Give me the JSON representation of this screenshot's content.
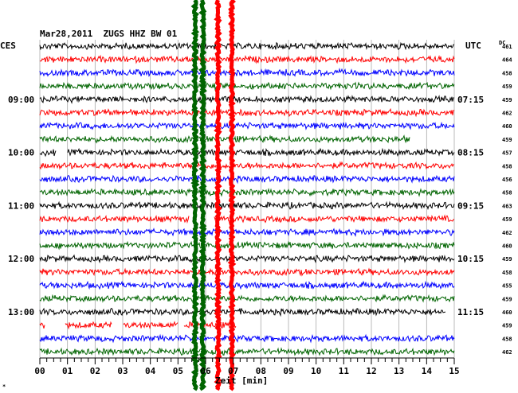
{
  "header": {
    "title": "Mar28,2011  ZUGS HHZ BW 01",
    "left_tz": "CES",
    "right_tz": "UTC",
    "dc_label": "DC"
  },
  "chart_data": {
    "type": "line",
    "title": "Mar28,2011  ZUGS HHZ BW 01",
    "xlabel": "Zeit [min]",
    "xlim": [
      0,
      15
    ],
    "x_ticks": [
      "00",
      "01",
      "02",
      "03",
      "04",
      "05",
      "06",
      "07",
      "08",
      "09",
      "10",
      "11",
      "12",
      "13",
      "14",
      "15"
    ],
    "grid": true,
    "row_colors": [
      "#000000",
      "#ff0000",
      "#0000ff",
      "#006400"
    ],
    "left_hour_labels": [
      {
        "row": 4,
        "label": "09:00"
      },
      {
        "row": 8,
        "label": "10:00"
      },
      {
        "row": 12,
        "label": "11:00"
      },
      {
        "row": 16,
        "label": "12:00"
      },
      {
        "row": 20,
        "label": "13:00"
      }
    ],
    "right_hour_labels": [
      {
        "row": 4,
        "label": "07:15"
      },
      {
        "row": 8,
        "label": "08:15"
      },
      {
        "row": 12,
        "label": "09:15"
      },
      {
        "row": 16,
        "label": "10:15"
      },
      {
        "row": 20,
        "label": "11:15"
      }
    ],
    "dc_values": [
      461,
      464,
      458,
      459,
      459,
      462,
      460,
      459,
      457,
      458,
      456,
      458,
      463,
      459,
      462,
      460,
      459,
      458,
      455,
      459,
      460,
      459,
      458,
      462
    ],
    "gaps": [
      {
        "row": 7,
        "from_min": 13.4,
        "to_min": 15
      },
      {
        "row": 8,
        "from_min": 0.6,
        "to_min": 1.0
      },
      {
        "row": 13,
        "from_min": 5.4,
        "to_min": 6.3
      },
      {
        "row": 20,
        "from_min": 14.7,
        "to_min": 15
      },
      {
        "row": 21,
        "from_min": 0.2,
        "to_min": 0.9
      },
      {
        "row": 21,
        "from_min": 2.6,
        "to_min": 3.0
      },
      {
        "row": 21,
        "from_min": 5.0,
        "to_min": 5.2
      },
      {
        "row": 21,
        "from_min": 7.1,
        "to_min": 15
      }
    ],
    "events": [
      {
        "color": "#006400",
        "minute": 5.62,
        "from_row": 0,
        "to_row": 23,
        "amplitude": "saturated"
      },
      {
        "color": "#006400",
        "minute": 5.9,
        "from_row": 0,
        "to_row": 23,
        "amplitude": "saturated"
      },
      {
        "color": "#ff0000",
        "minute": 6.45,
        "from_row": 0,
        "to_row": 23,
        "amplitude": "saturated"
      },
      {
        "color": "#ff0000",
        "minute": 6.95,
        "from_row": 0,
        "to_row": 23,
        "amplitude": "saturated"
      }
    ]
  }
}
